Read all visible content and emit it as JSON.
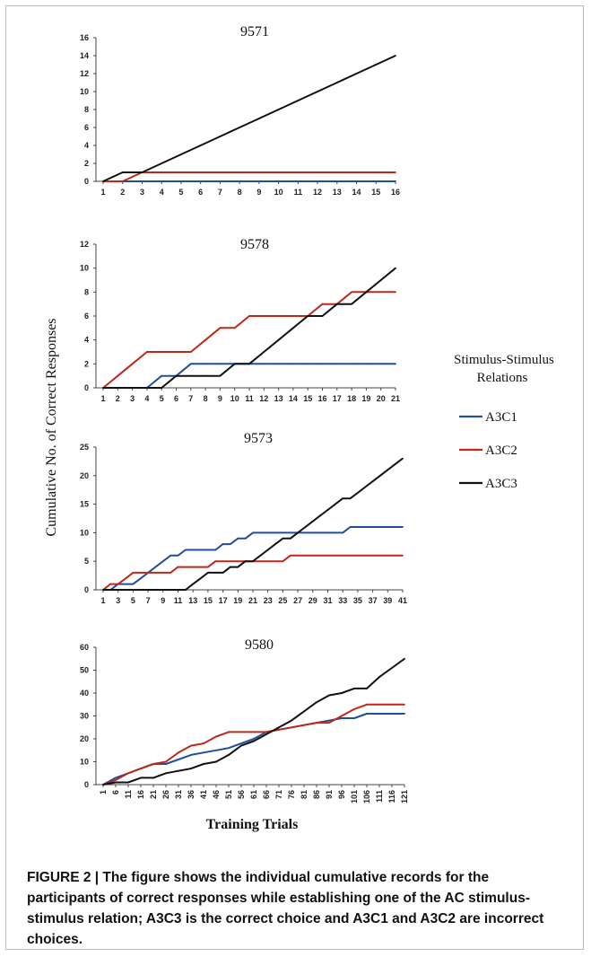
{
  "figure": {
    "ylabel": "Cumulative No. of Correct Responses",
    "xlabel": "Training Trials",
    "caption": "FIGURE 2 | The figure shows the individual cumulative records for the participants of correct responses while establishing one of the AC stimulus-stimulus relation; A3C3 is the correct choice and A3C1 and A3C2 are incorrect choices."
  },
  "legend": {
    "title_line1": "Stimulus-Stimulus",
    "title_line2": "Relations",
    "items": [
      {
        "name": "A3C1",
        "color": "#1f4e9c"
      },
      {
        "name": "A3C2",
        "color": "#c0271a"
      },
      {
        "name": "A3C3",
        "color": "#111111"
      }
    ]
  },
  "chart_data": [
    {
      "type": "line",
      "title": "9571",
      "ylim": [
        0,
        16
      ],
      "yticks": [
        0,
        2,
        4,
        6,
        8,
        10,
        12,
        14,
        16
      ],
      "x": [
        1,
        2,
        3,
        4,
        5,
        6,
        7,
        8,
        9,
        10,
        11,
        12,
        13,
        14,
        15,
        16
      ],
      "xticklabels": [
        "1",
        "2",
        "3",
        "4",
        "5",
        "6",
        "7",
        "8",
        "9",
        "10",
        "11",
        "12",
        "13",
        "14",
        "15",
        "16"
      ],
      "series": [
        {
          "name": "A3C1",
          "color": "#1f4e9c",
          "values": [
            0,
            0,
            0,
            0,
            0,
            0,
            0,
            0,
            0,
            0,
            0,
            0,
            0,
            0,
            0,
            0
          ]
        },
        {
          "name": "A3C2",
          "color": "#c0271a",
          "values": [
            0,
            0,
            1,
            1,
            1,
            1,
            1,
            1,
            1,
            1,
            1,
            1,
            1,
            1,
            1,
            1
          ]
        },
        {
          "name": "A3C3",
          "color": "#111111",
          "values": [
            0,
            1,
            1,
            2,
            3,
            4,
            5,
            6,
            7,
            8,
            9,
            10,
            11,
            12,
            13,
            14
          ]
        }
      ]
    },
    {
      "type": "line",
      "title": "9578",
      "ylim": [
        0,
        12
      ],
      "yticks": [
        0,
        2,
        4,
        6,
        8,
        10,
        12
      ],
      "x": [
        1,
        2,
        3,
        4,
        5,
        6,
        7,
        8,
        9,
        10,
        11,
        12,
        13,
        14,
        15,
        16,
        17,
        18,
        19,
        20,
        21
      ],
      "xticklabels": [
        "1",
        "2",
        "3",
        "4",
        "5",
        "6",
        "7",
        "8",
        "9",
        "10",
        "11",
        "12",
        "13",
        "14",
        "15",
        "16",
        "17",
        "18",
        "19",
        "20",
        "21"
      ],
      "series": [
        {
          "name": "A3C1",
          "color": "#1f4e9c",
          "values": [
            0,
            0,
            0,
            0,
            1,
            1,
            2,
            2,
            2,
            2,
            2,
            2,
            2,
            2,
            2,
            2,
            2,
            2,
            2,
            2,
            2
          ]
        },
        {
          "name": "A3C2",
          "color": "#c0271a",
          "values": [
            0,
            1,
            2,
            3,
            3,
            3,
            3,
            4,
            5,
            5,
            6,
            6,
            6,
            6,
            6,
            7,
            7,
            8,
            8,
            8,
            8
          ]
        },
        {
          "name": "A3C3",
          "color": "#111111",
          "values": [
            0,
            0,
            0,
            0,
            0,
            1,
            1,
            1,
            1,
            2,
            2,
            3,
            4,
            5,
            6,
            6,
            7,
            7,
            8,
            9,
            10
          ]
        }
      ]
    },
    {
      "type": "line",
      "title": "9573",
      "ylim": [
        0,
        25
      ],
      "yticks": [
        0,
        5,
        10,
        15,
        20,
        25
      ],
      "x": [
        1,
        2,
        3,
        4,
        5,
        6,
        7,
        8,
        9,
        10,
        11,
        12,
        13,
        14,
        15,
        16,
        17,
        18,
        19,
        20,
        21,
        22,
        23,
        24,
        25,
        26,
        27,
        28,
        29,
        30,
        31,
        32,
        33,
        34,
        35,
        36,
        37,
        38,
        39,
        40,
        41
      ],
      "xticklabels": [
        "1",
        "3",
        "5",
        "7",
        "9",
        "11",
        "13",
        "15",
        "17",
        "19",
        "21",
        "23",
        "25",
        "27",
        "29",
        "31",
        "33",
        "35",
        "37",
        "39",
        "41"
      ],
      "series": [
        {
          "name": "A3C1",
          "color": "#1f4e9c",
          "values": [
            0,
            0,
            1,
            1,
            1,
            2,
            3,
            4,
            5,
            6,
            6,
            7,
            7,
            7,
            7,
            7,
            8,
            8,
            9,
            9,
            10,
            10,
            10,
            10,
            10,
            10,
            10,
            10,
            10,
            10,
            10,
            10,
            10,
            11,
            11,
            11,
            11,
            11,
            11,
            11,
            11
          ]
        },
        {
          "name": "A3C2",
          "color": "#c0271a",
          "values": [
            0,
            1,
            1,
            2,
            3,
            3,
            3,
            3,
            3,
            3,
            4,
            4,
            4,
            4,
            4,
            5,
            5,
            5,
            5,
            5,
            5,
            5,
            5,
            5,
            5,
            6,
            6,
            6,
            6,
            6,
            6,
            6,
            6,
            6,
            6,
            6,
            6,
            6,
            6,
            6,
            6
          ]
        },
        {
          "name": "A3C3",
          "color": "#111111",
          "values": [
            0,
            0,
            0,
            0,
            0,
            0,
            0,
            0,
            0,
            0,
            0,
            0,
            1,
            2,
            3,
            3,
            3,
            4,
            4,
            5,
            5,
            6,
            7,
            8,
            9,
            9,
            10,
            11,
            12,
            13,
            14,
            15,
            16,
            16,
            17,
            18,
            19,
            20,
            21,
            22,
            23
          ]
        }
      ]
    },
    {
      "type": "line",
      "title": "9580",
      "ylim": [
        0,
        60
      ],
      "yticks": [
        0,
        10,
        20,
        30,
        40,
        50,
        60
      ],
      "x": [
        1,
        6,
        11,
        16,
        21,
        26,
        31,
        36,
        41,
        46,
        51,
        56,
        61,
        66,
        71,
        76,
        81,
        86,
        91,
        96,
        101,
        106,
        111,
        116,
        121
      ],
      "xticklabels": [
        "1",
        "6",
        "11",
        "16",
        "21",
        "26",
        "31",
        "36",
        "41",
        "46",
        "51",
        "56",
        "61",
        "66",
        "71",
        "76",
        "81",
        "86",
        "91",
        "96",
        "101",
        "106",
        "111",
        "116",
        "121"
      ],
      "series": [
        {
          "name": "A3C1",
          "color": "#1f4e9c",
          "values": [
            0,
            3,
            5,
            7,
            9,
            9,
            11,
            13,
            14,
            15,
            16,
            18,
            20,
            23,
            24,
            25,
            26,
            27,
            28,
            29,
            29,
            31,
            31,
            31,
            31
          ]
        },
        {
          "name": "A3C2",
          "color": "#c0271a",
          "values": [
            0,
            2,
            5,
            7,
            9,
            10,
            14,
            17,
            18,
            21,
            23,
            23,
            23,
            23,
            24,
            25,
            26,
            27,
            27,
            30,
            33,
            35,
            35,
            35,
            35
          ]
        },
        {
          "name": "A3C3",
          "color": "#111111",
          "values": [
            0,
            1,
            1,
            3,
            3,
            5,
            6,
            7,
            9,
            10,
            13,
            17,
            19,
            22,
            25,
            28,
            32,
            36,
            39,
            40,
            42,
            42,
            47,
            51,
            55
          ]
        }
      ]
    }
  ]
}
